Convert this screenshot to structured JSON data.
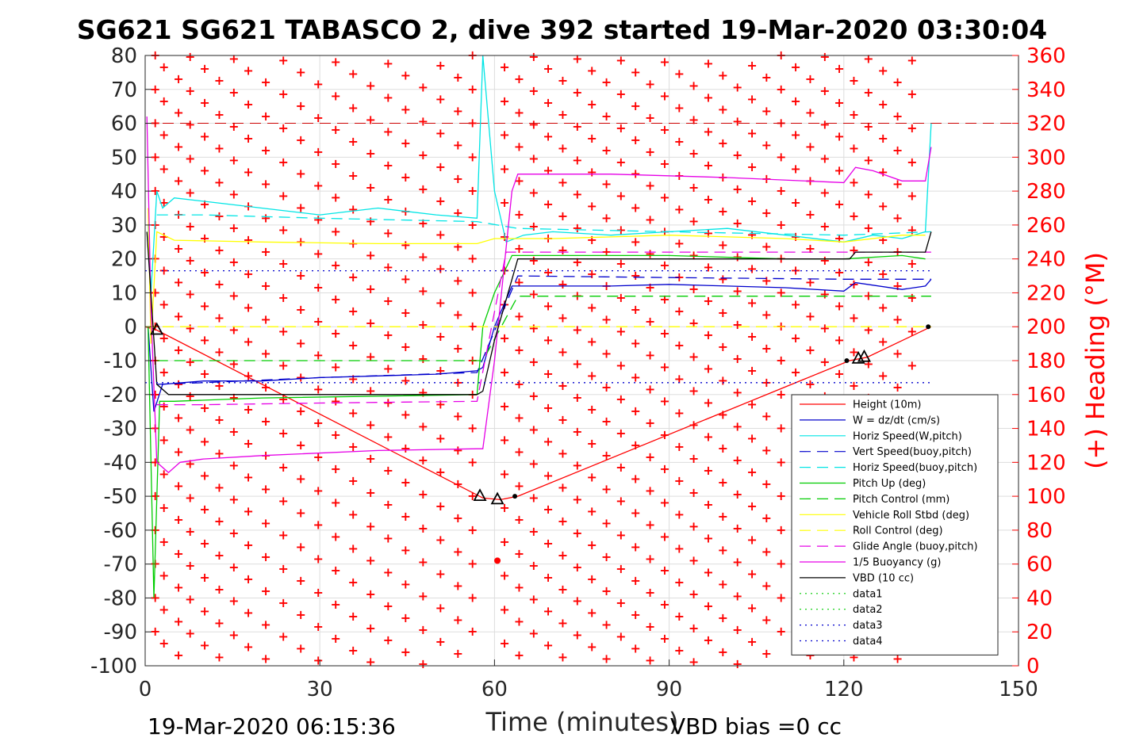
{
  "chart_data": {
    "type": "line",
    "title": "SG621 SG621 TABASCO 2, dive 392 started 19-Mar-2020 03:30:04",
    "xlabel": "Time (minutes)",
    "ylabel_right": "(+) Heading (°M)",
    "xlim": [
      0,
      150
    ],
    "ylim": [
      -100,
      80
    ],
    "ylim_right": [
      0,
      360
    ],
    "x_ticks": [
      "0",
      "30",
      "60",
      "90",
      "120",
      "150"
    ],
    "y_ticks": [
      "-100",
      "-90",
      "-80",
      "-70",
      "-60",
      "-50",
      "-40",
      "-30",
      "-20",
      "-10",
      "0",
      "10",
      "20",
      "30",
      "40",
      "50",
      "60",
      "70",
      "80"
    ],
    "y_ticks_right": [
      "0",
      "20",
      "40",
      "60",
      "80",
      "100",
      "120",
      "140",
      "160",
      "180",
      "200",
      "220",
      "240",
      "260",
      "280",
      "300",
      "320",
      "340",
      "360"
    ],
    "grid": true,
    "legend_position": "bottom-right",
    "series": [
      {
        "name": "Height (10m)",
        "color": "#ff0000",
        "style": "solid",
        "x": [
          0,
          2,
          58,
          61,
          64,
          121,
          124,
          135
        ],
        "y": [
          0,
          -1,
          -50.5,
          -51,
          -50,
          -10,
          -9,
          0
        ]
      },
      {
        "name": "W = dz/dt (cm/s)",
        "color": "#0000cc",
        "style": "solid",
        "x": [
          0.5,
          1.5,
          3,
          10,
          20,
          30,
          40,
          50,
          57,
          58,
          60,
          63,
          70,
          80,
          90,
          100,
          110,
          120,
          122,
          130,
          134,
          135
        ],
        "y": [
          0,
          -25,
          -17,
          -16,
          -16,
          -15,
          -14.5,
          -14,
          -13,
          -12,
          0,
          12,
          12,
          12,
          12.5,
          12,
          11.5,
          10.5,
          13,
          11,
          12,
          14
        ]
      },
      {
        "name": "Horiz Speed(W,pitch)",
        "color": "#00e5e5",
        "style": "solid",
        "x": [
          0.5,
          1,
          2,
          3,
          5,
          10,
          20,
          30,
          40,
          50,
          57,
          58,
          60,
          62,
          65,
          70,
          80,
          90,
          100,
          110,
          120,
          125,
          130,
          134,
          135
        ],
        "y": [
          30,
          10,
          40,
          35,
          38,
          37,
          35,
          33,
          35,
          33,
          32,
          80,
          40,
          25,
          27,
          28,
          27,
          28,
          29,
          27,
          25,
          27,
          26,
          28,
          60
        ]
      },
      {
        "name": "Vert Speed(buoy,pitch)",
        "color": "#0000cc",
        "style": "dashed",
        "x": [
          2,
          10,
          30,
          57,
          64,
          90,
          120,
          135
        ],
        "y": [
          -17,
          -16.5,
          -15,
          -13.5,
          15,
          14.5,
          14,
          14
        ]
      },
      {
        "name": "Horiz Speed(buoy,pitch)",
        "color": "#00e5e5",
        "style": "dashed",
        "x": [
          2,
          10,
          30,
          57,
          64,
          90,
          120,
          135
        ],
        "y": [
          33,
          33,
          32,
          31,
          29,
          28,
          27,
          28
        ]
      },
      {
        "name": "Pitch Up (deg)",
        "color": "#00cc00",
        "style": "solid",
        "x": [
          0.5,
          1.5,
          2.5,
          5,
          20,
          40,
          57,
          58,
          60,
          63,
          70,
          90,
          110,
          120,
          130,
          134
        ],
        "y": [
          0,
          -80,
          -22,
          -22,
          -21,
          -20.5,
          -20,
          0,
          10,
          21,
          21,
          21,
          20,
          20,
          21,
          20
        ]
      },
      {
        "name": "Pitch Control (mm)",
        "color": "#00cc00",
        "style": "dashed",
        "x": [
          2,
          58,
          64,
          135
        ],
        "y": [
          -10,
          -10,
          9,
          9
        ]
      },
      {
        "name": "Vehicle Roll Stbd (deg)",
        "color": "#ffff00",
        "style": "solid",
        "x": [
          0.5,
          1,
          2,
          5,
          20,
          40,
          57,
          60,
          63,
          70,
          90,
          110,
          120,
          130,
          134
        ],
        "y": [
          35,
          -5,
          28,
          25.5,
          25,
          24.5,
          24.5,
          26,
          26,
          26,
          27,
          26,
          25,
          27,
          27
        ]
      },
      {
        "name": "Roll Control (deg)",
        "color": "#ffff00",
        "style": "dashed",
        "x": [
          0,
          135
        ],
        "y": [
          0,
          0
        ]
      },
      {
        "name": "Glide Angle (buoy,pitch)",
        "color": "#e600e6",
        "style": "dashed",
        "x": [
          2,
          10,
          30,
          57,
          62,
          70,
          90,
          110,
          120,
          135
        ],
        "y": [
          -23,
          -23,
          -22.5,
          -22,
          22,
          22,
          22,
          22,
          22,
          22
        ]
      },
      {
        "name": "1/5 Buoyancy (g)",
        "color": "#e600e6",
        "style": "solid",
        "x": [
          0.3,
          1,
          2,
          4,
          6,
          10,
          20,
          40,
          57,
          58,
          60,
          63,
          64,
          80,
          100,
          120,
          122,
          125,
          130,
          134,
          135
        ],
        "y": [
          62,
          5,
          -40,
          -43,
          -40,
          -39,
          -38,
          -36.5,
          -36,
          -36,
          -10,
          40,
          45,
          45,
          44,
          42.5,
          47,
          46,
          43,
          43,
          53
        ]
      },
      {
        "name": "VBD (10 cc)",
        "color": "#000000",
        "style": "solid",
        "x": [
          0.3,
          2,
          4,
          57,
          58,
          60,
          64,
          121,
          122,
          134,
          135
        ],
        "y": [
          28,
          -17,
          -20,
          -20,
          -19,
          -4,
          20,
          20,
          22,
          22,
          28
        ]
      },
      {
        "name": "data1",
        "color": "#00cc00",
        "style": "dotted"
      },
      {
        "name": "data2",
        "color": "#00cc00",
        "style": "dotted"
      },
      {
        "name": "data3",
        "color": "#0000cc",
        "style": "dotted",
        "x": [
          0,
          135
        ],
        "y": [
          16.5,
          16.5
        ]
      },
      {
        "name": "data4",
        "color": "#0000cc",
        "style": "dotted",
        "x": [
          0,
          135
        ],
        "y": [
          -16.5,
          -16.5
        ]
      }
    ],
    "reference_lines": [
      {
        "y": 60,
        "color": "#cc0000",
        "style": "dashed"
      }
    ],
    "heading_marker": {
      "color": "#ff0000",
      "symbol": "+",
      "columns_x": [
        2,
        3.5,
        6,
        8,
        10.5,
        13,
        15.5,
        18,
        21,
        24,
        27,
        30,
        33,
        36,
        39,
        42,
        45,
        48,
        51,
        54,
        56.5,
        62,
        64.5,
        67,
        69.5,
        72,
        74.5,
        77,
        79.5,
        82,
        84.5,
        87,
        89.5,
        92,
        94.5,
        97,
        99.5,
        102,
        104.5,
        107,
        109.5,
        112,
        114.5,
        117,
        119.5,
        122,
        124.5,
        127,
        129.5,
        132
      ]
    },
    "markers": [
      {
        "symbol": "triangle",
        "x": 2,
        "y": -1
      },
      {
        "symbol": "triangle",
        "x": 57.5,
        "y": -50
      },
      {
        "symbol": "triangle",
        "x": 60.5,
        "y": -51
      },
      {
        "symbol": "triangle",
        "x": 123.5,
        "y": -9
      },
      {
        "symbol": "triangle",
        "x": 122.5,
        "y": -9.5
      },
      {
        "symbol": "dot",
        "x": 63.5,
        "y": -50
      },
      {
        "symbol": "dot",
        "x": 134.5,
        "y": 0
      },
      {
        "symbol": "dot",
        "x": 120.5,
        "y": -10
      },
      {
        "symbol": "red-dot",
        "x": 60.5,
        "y": -69
      }
    ]
  },
  "footer": {
    "timestamp": "19-Mar-2020 06:15:36",
    "vbd_bias": "VBD bias =0 cc"
  }
}
